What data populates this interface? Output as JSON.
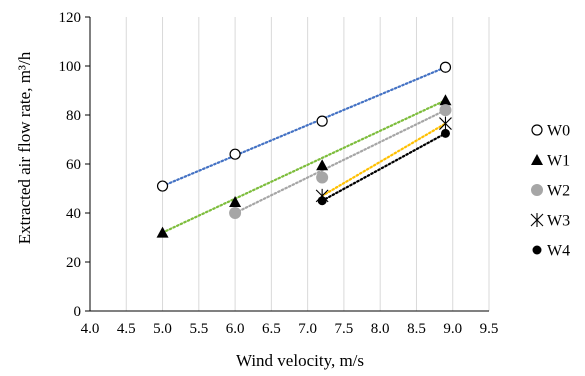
{
  "chart_data": {
    "type": "scatter",
    "title": "",
    "xlabel": "Wind velocity, m/s",
    "ylabel": "Extracted air flow rate, m³/h",
    "xlim": [
      4.0,
      9.5
    ],
    "ylim": [
      0,
      120
    ],
    "x_ticks": [
      "4.0",
      "4.5",
      "5.0",
      "5.5",
      "6.0",
      "6.5",
      "7.0",
      "7.5",
      "8.0",
      "8.5",
      "9.0",
      "9.5"
    ],
    "y_ticks": [
      "0",
      "20",
      "40",
      "60",
      "80",
      "100",
      "120"
    ],
    "grid": "vertical",
    "legend_position": "right",
    "trendlines": "dotted linear",
    "series": [
      {
        "name": "W0",
        "marker": "open-circle",
        "color": "#000000",
        "trend_color": "#4472C4",
        "points": [
          [
            5.0,
            51
          ],
          [
            6.0,
            64
          ],
          [
            7.2,
            77.5
          ],
          [
            8.9,
            99.5
          ]
        ]
      },
      {
        "name": "W1",
        "marker": "filled-triangle",
        "color": "#000000",
        "trend_color": "#7DBD3C",
        "points": [
          [
            5.0,
            32
          ],
          [
            6.0,
            44.5
          ],
          [
            7.2,
            59.5
          ],
          [
            8.9,
            86
          ]
        ]
      },
      {
        "name": "W2",
        "marker": "filled-circle-gray",
        "color": "#A6A6A6",
        "trend_color": "#A6A6A6",
        "points": [
          [
            6.0,
            40
          ],
          [
            7.2,
            54.5
          ],
          [
            8.9,
            82
          ]
        ]
      },
      {
        "name": "W3",
        "marker": "asterisk",
        "color": "#000000",
        "trend_color": "#FFC000",
        "points": [
          [
            7.2,
            47
          ],
          [
            8.9,
            76.5
          ]
        ]
      },
      {
        "name": "W4",
        "marker": "filled-circle",
        "color": "#000000",
        "trend_color": "#000000",
        "points": [
          [
            7.2,
            45
          ],
          [
            8.9,
            72.5
          ]
        ]
      }
    ]
  }
}
